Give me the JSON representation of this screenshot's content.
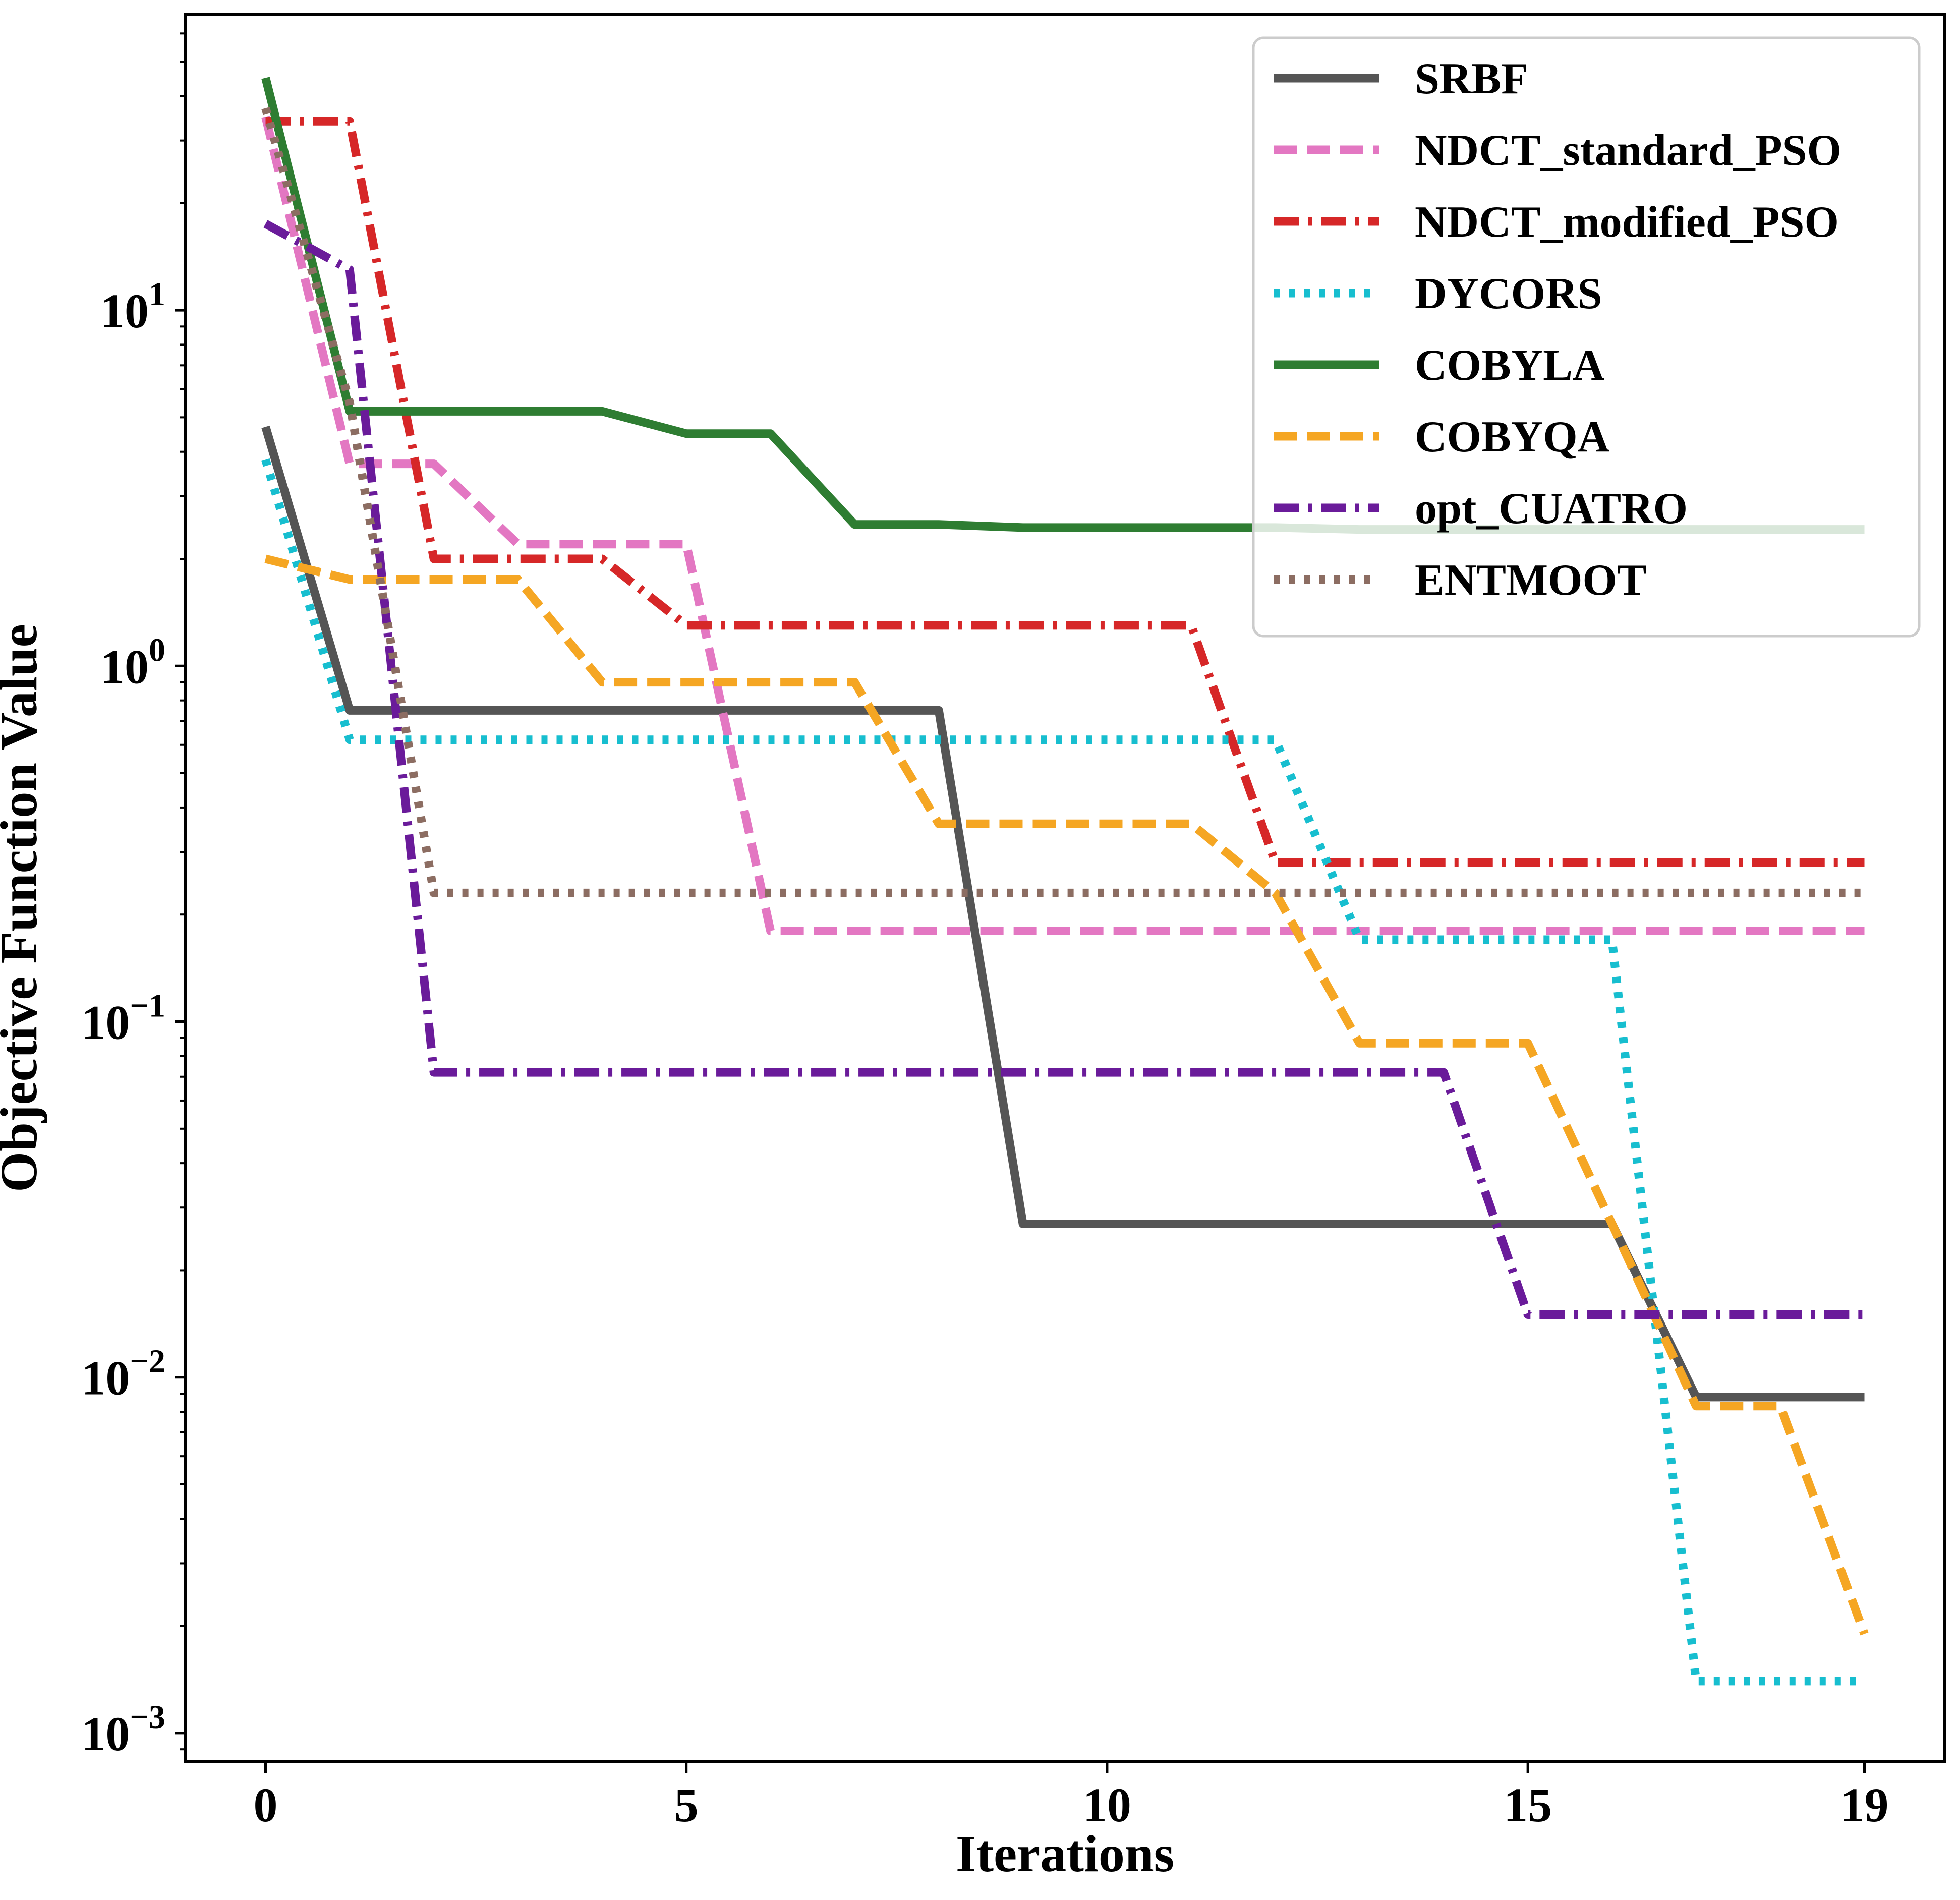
{
  "chart_data": {
    "type": "line",
    "xlabel": "Iterations",
    "ylabel": "Objective Function Value",
    "yscale": "log",
    "xlim": [
      -0.95,
      19.95
    ],
    "ylim": [
      0.00083,
      68
    ],
    "grid": false,
    "legend_position": "top-right",
    "x_ticks": [
      0,
      5,
      10,
      15,
      19
    ],
    "x_tick_labels": [
      "0",
      "5",
      "10",
      "15",
      "19"
    ],
    "y_ticks": [
      0.001,
      0.01,
      0.1,
      1,
      10
    ],
    "y_tick_labels": [
      {
        "base": "10",
        "exp": "−3"
      },
      {
        "base": "10",
        "exp": "−2"
      },
      {
        "base": "10",
        "exp": "−1"
      },
      {
        "base": "10",
        "exp": "0"
      },
      {
        "base": "10",
        "exp": "1"
      }
    ],
    "series": [
      {
        "name": "SRBF",
        "color": "#555555",
        "dash": "solid",
        "values": [
          4.7,
          0.75,
          0.75,
          0.75,
          0.75,
          0.75,
          0.75,
          0.75,
          0.75,
          0.027,
          0.027,
          0.027,
          0.027,
          0.027,
          0.027,
          0.027,
          0.027,
          0.0088,
          0.0088,
          0.0088
        ]
      },
      {
        "name": "NDCT_standard_PSO",
        "color": "#e377c2",
        "dash": "dashed",
        "values": [
          35,
          3.7,
          3.7,
          2.2,
          2.2,
          2.2,
          0.18,
          0.18,
          0.18,
          0.18,
          0.18,
          0.18,
          0.18,
          0.18,
          0.18,
          0.18,
          0.18,
          0.18,
          0.18,
          0.18
        ]
      },
      {
        "name": "NDCT_modified_PSO",
        "color": "#d62728",
        "dash": "dashdot",
        "values": [
          34,
          34,
          2.0,
          2.0,
          2.0,
          1.3,
          1.3,
          1.3,
          1.3,
          1.3,
          1.3,
          1.3,
          0.28,
          0.28,
          0.28,
          0.28,
          0.28,
          0.28,
          0.28,
          0.28
        ]
      },
      {
        "name": "DYCORS",
        "color": "#17becf",
        "dash": "dotted",
        "values": [
          3.8,
          0.62,
          0.62,
          0.62,
          0.62,
          0.62,
          0.62,
          0.62,
          0.62,
          0.62,
          0.62,
          0.62,
          0.62,
          0.17,
          0.17,
          0.17,
          0.17,
          0.0014,
          0.0014,
          0.0014
        ]
      },
      {
        "name": "COBYLA",
        "color": "#2e7d32",
        "dash": "solid",
        "values": [
          45,
          5.2,
          5.2,
          5.2,
          5.2,
          4.5,
          4.5,
          2.5,
          2.5,
          2.45,
          2.45,
          2.45,
          2.45,
          2.42,
          2.42,
          2.42,
          2.42,
          2.42,
          2.42,
          2.42
        ]
      },
      {
        "name": "COBYQA",
        "color": "#f5a623",
        "dash": "dashed",
        "values": [
          2.0,
          1.75,
          1.75,
          1.75,
          0.9,
          0.9,
          0.9,
          0.9,
          0.36,
          0.36,
          0.36,
          0.36,
          0.23,
          0.087,
          0.087,
          0.087,
          0.027,
          0.0083,
          0.0083,
          0.0019
        ]
      },
      {
        "name": "opt_CUATRO",
        "color": "#6a1b9a",
        "dash": "dashdot",
        "values": [
          17.5,
          13,
          0.072,
          0.072,
          0.072,
          0.072,
          0.072,
          0.072,
          0.072,
          0.072,
          0.072,
          0.072,
          0.072,
          0.072,
          0.072,
          0.015,
          0.015,
          0.015,
          0.015,
          0.015
        ]
      },
      {
        "name": "ENTMOOT",
        "color": "#8c6d62",
        "dash": "dotted",
        "values": [
          37,
          5.5,
          0.23,
          0.23,
          0.23,
          0.23,
          0.23,
          0.23,
          0.23,
          0.23,
          0.23,
          0.23,
          0.23,
          0.23,
          0.23,
          0.23,
          0.23,
          0.23,
          0.23,
          0.23
        ]
      }
    ]
  }
}
